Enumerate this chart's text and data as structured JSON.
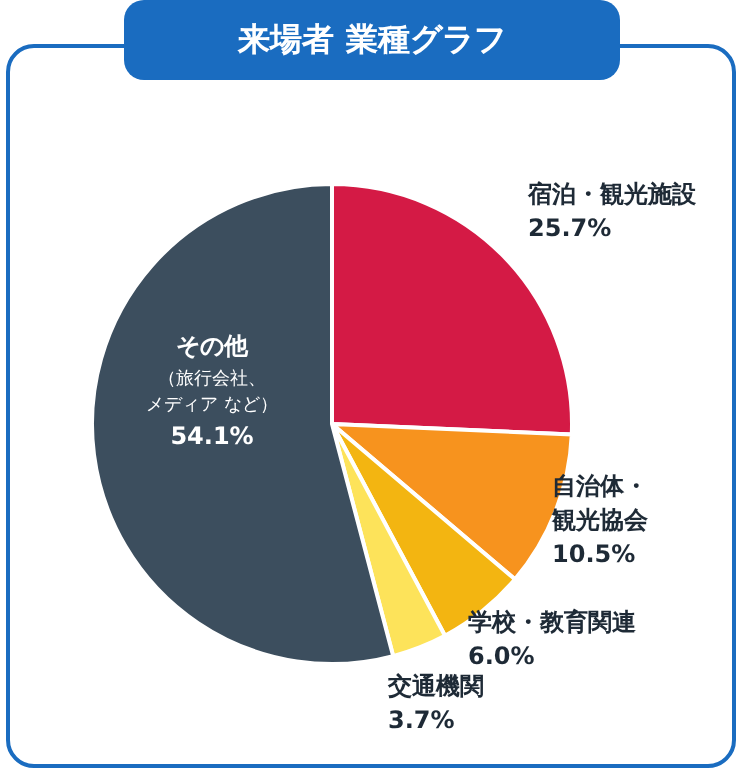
{
  "chart_data": {
    "type": "pie",
    "title": "来場者 業種グラフ",
    "categories": [
      "宿泊・観光施設",
      "自治体・観光協会",
      "学校・教育関連",
      "交通機関",
      "その他（旅行会社、メディア など）"
    ],
    "values": [
      25.7,
      10.5,
      6.0,
      3.7,
      54.1
    ],
    "colors": [
      "#d41a45",
      "#f7931e",
      "#f3b511",
      "#fde35a",
      "#3c4e5e"
    ],
    "value_labels": [
      "25.7%",
      "10.5%",
      "6.0%",
      "3.7%",
      "54.1%"
    ],
    "legend": false
  }
}
